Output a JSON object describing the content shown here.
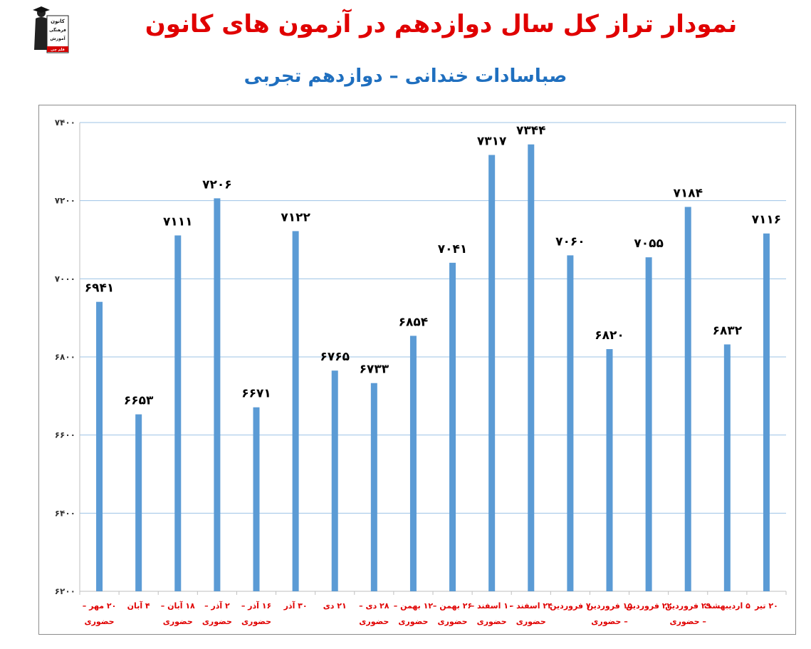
{
  "header": {
    "title": "نمودار تراز کل سال دوازدهم در آزمون های کانون",
    "subtitle": "صباسادات خندانی – دوازدهم تجربی",
    "logo_text": [
      "کانون",
      "فرهنگی",
      "آموزش",
      "قلم چی"
    ]
  },
  "colors": {
    "bar": "#5b9bd5",
    "title": "#e00000",
    "subtitle": "#1f6fbf",
    "grid": "#9dc3e6",
    "xlabel": "#e00000"
  },
  "chart_data": {
    "type": "bar",
    "title": "",
    "xlabel": "",
    "ylabel": "",
    "ylim": [
      6200,
      7400
    ],
    "yticks": [
      6200,
      6400,
      6600,
      6800,
      7000,
      7200,
      7400
    ],
    "ytick_labels": [
      "۶۲۰۰",
      "۶۴۰۰",
      "۶۶۰۰",
      "۶۸۰۰",
      "۷۰۰۰",
      "۷۲۰۰",
      "۷۴۰۰"
    ],
    "grid": true,
    "categories": [
      [
        "۲۰ مهر –",
        "حضوری"
      ],
      [
        "۴ آبان"
      ],
      [
        "۱۸ آبان –",
        "حضوری"
      ],
      [
        "۲ آذر –",
        "حضوری"
      ],
      [
        "۱۶ آذر –",
        "حضوری"
      ],
      [
        "۳۰ آذر"
      ],
      [
        "۲۱ دی"
      ],
      [
        "۲۸ دی –",
        "حضوری"
      ],
      [
        "۱۲ بهمن –",
        "حضوری"
      ],
      [
        "۲۶ بهمن –",
        "حضوری"
      ],
      [
        "۱۰ اسفند –",
        "حضوری"
      ],
      [
        "۲۴ اسفند –",
        "حضوری"
      ],
      [
        "۷ فروردین"
      ],
      [
        "۱۵ فروردین",
        "– حضوری"
      ],
      [
        "۲۲ فروردین"
      ],
      [
        "۲۹ فروردین",
        "– حضوری"
      ],
      [
        "۵ اردیبهشت"
      ],
      [
        "۲۰ تیر"
      ]
    ],
    "values": [
      6941,
      6653,
      7111,
      7206,
      6671,
      7122,
      6765,
      6733,
      6854,
      7041,
      7317,
      7344,
      7060,
      6820,
      7055,
      7184,
      6832,
      7116
    ],
    "value_labels": [
      "۶۹۴۱",
      "۶۶۵۳",
      "۷۱۱۱",
      "۷۲۰۶",
      "۶۶۷۱",
      "۷۱۲۲",
      "۶۷۶۵",
      "۶۷۳۳",
      "۶۸۵۴",
      "۷۰۴۱",
      "۷۳۱۷",
      "۷۳۴۴",
      "۷۰۶۰",
      "۶۸۲۰",
      "۷۰۵۵",
      "۷۱۸۴",
      "۶۸۳۲",
      "۷۱۱۶"
    ]
  }
}
